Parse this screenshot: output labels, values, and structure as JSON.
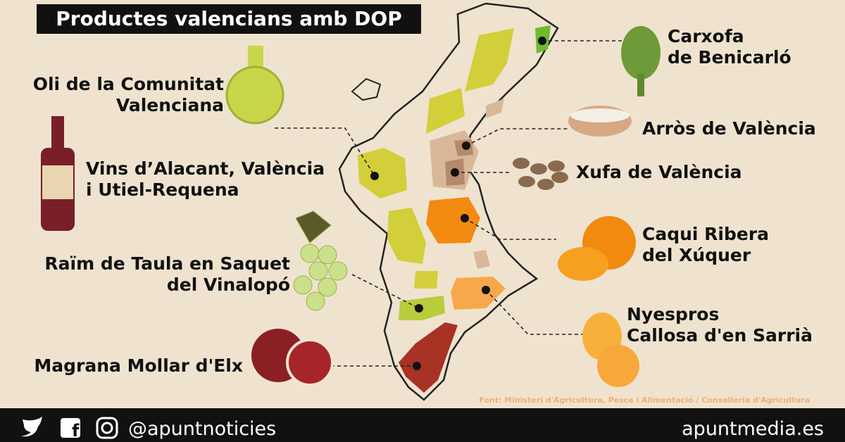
{
  "title": "Productes valencians amb DOP",
  "products": [
    {
      "lines": [
        "Carxofa",
        "de Benicarló"
      ]
    },
    {
      "lines": [
        "Oli de la Comunitat",
        "Valenciana"
      ]
    },
    {
      "lines": [
        "Arròs de València"
      ]
    },
    {
      "lines": [
        "Vins d’Alacant, València",
        "i Utiel-Requena"
      ]
    },
    {
      "lines": [
        "Xufa de València"
      ]
    },
    {
      "lines": [
        "Caqui Ribera",
        "del Xúquer"
      ]
    },
    {
      "lines": [
        "Raïm de Taula en Saquet",
        "del Vinalopó"
      ]
    },
    {
      "lines": [
        "Nyespros",
        "Callosa d'en Sarrià"
      ]
    },
    {
      "lines": [
        "Magrana Mollar d'Elx"
      ]
    }
  ],
  "source": "Font: Ministeri d'Agricultura, Pesca i Alimentació / Conselleria d'Agricultura",
  "footer": {
    "handle": "@apuntnoticies",
    "site": "apuntmedia.es"
  }
}
